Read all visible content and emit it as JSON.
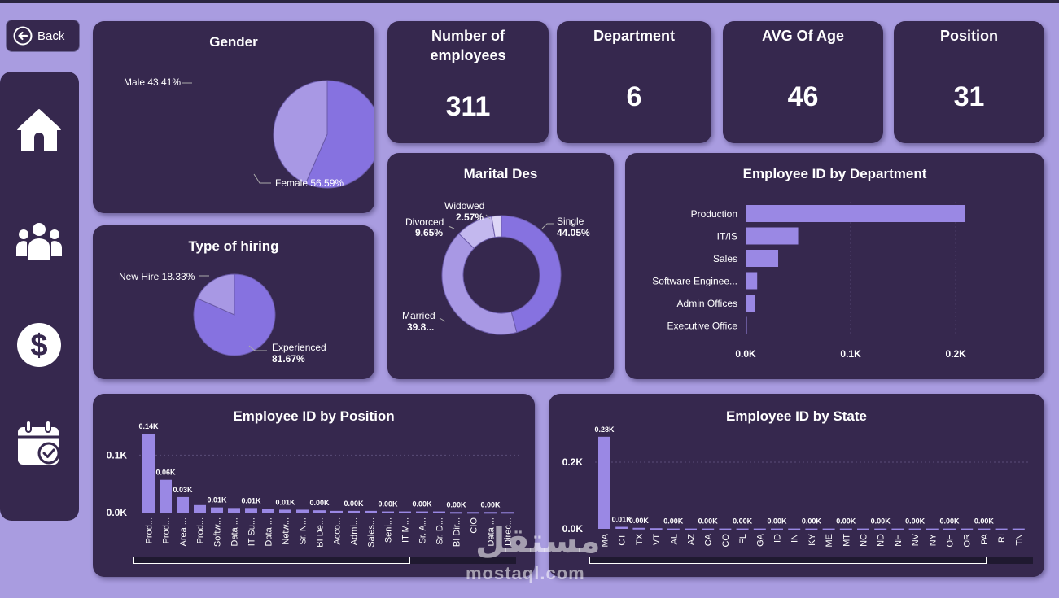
{
  "nav": {
    "back_label": "Back",
    "items": [
      {
        "icon": "home-icon"
      },
      {
        "icon": "people-icon"
      },
      {
        "icon": "dollar-icon"
      },
      {
        "icon": "calendar-check-icon"
      }
    ]
  },
  "kpis": [
    {
      "title_line1": "Number of",
      "title_line2": "employees",
      "value": "311"
    },
    {
      "title_line1": "Department",
      "title_line2": "",
      "value": "6"
    },
    {
      "title_line1": "AVG Of Age",
      "title_line2": "",
      "value": "46"
    },
    {
      "title_line1": "Position",
      "title_line2": "",
      "value": "31"
    }
  ],
  "colors": {
    "background": "#a99ce0",
    "card": "#36284e",
    "accent_primary": "#8672e0",
    "accent_light": "#a898e4",
    "accent_pale": "#c3b8ee",
    "accent_faint": "#ddd6f6"
  },
  "watermark": {
    "arabic": "مستقل",
    "latin": "mostaql.com"
  },
  "chart_data": [
    {
      "id": "gender",
      "type": "pie",
      "title": "Gender",
      "slices": [
        {
          "label": "Female",
          "value": 56.59,
          "text": "Female 56.59%",
          "color": "#8672e0"
        },
        {
          "label": "Male",
          "value": 43.41,
          "text": "Male 43.41%",
          "color": "#a898e4"
        }
      ]
    },
    {
      "id": "hiring",
      "type": "pie",
      "title": "Type of hiring",
      "slices": [
        {
          "label": "Experienced",
          "value": 81.67,
          "text_line1": "Experienced",
          "text_line2": "81.67%",
          "color": "#8672e0"
        },
        {
          "label": "New Hire",
          "value": 18.33,
          "text_line1": "New Hire 18.33%",
          "text_line2": "",
          "color": "#a898e4"
        }
      ]
    },
    {
      "id": "marital",
      "type": "pie",
      "title": "Marital Des",
      "slices": [
        {
          "label": "Single",
          "value": 44.05,
          "text_line1": "Single",
          "text_line2": "44.05%",
          "color": "#8672e0"
        },
        {
          "label": "Married",
          "value": 39.8,
          "text_line1": "Married",
          "text_line2": "39.8...",
          "color": "#a898e4"
        },
        {
          "label": "Divorced",
          "value": 9.65,
          "text_line1": "Divorced",
          "text_line2": "9.65%",
          "color": "#c3b8ee"
        },
        {
          "label": "Widowed",
          "value": 2.57,
          "text_line1": "Widowed",
          "text_line2": "2.57%",
          "color": "#ddd6f6"
        }
      ]
    },
    {
      "id": "dept",
      "type": "bar",
      "orientation": "horizontal",
      "title": "Employee ID by Department",
      "categories": [
        "Production",
        "IT/IS",
        "Sales",
        "Software Enginee...",
        "Admin Offices",
        "Executive Office"
      ],
      "values": [
        209,
        50,
        31,
        11,
        9,
        1
      ],
      "xticks": [
        0,
        100,
        200
      ],
      "xtick_labels": [
        "0.0K",
        "0.1K",
        "0.2K"
      ],
      "xlim": [
        0,
        220
      ],
      "grid": true
    },
    {
      "id": "position",
      "type": "bar",
      "title": "Employee ID by Position",
      "categories": [
        "Prod...",
        "Prod...",
        "Area ...",
        "Prod...",
        "Softw...",
        "Data ...",
        "IT Su...",
        "Data ...",
        "Netw...",
        "Sr. N...",
        "BI De...",
        "Acco...",
        "Admi...",
        "Sales...",
        "Seni...",
        "IT M...",
        "Sr. A...",
        "Sr. D...",
        "BI Dir...",
        "CIO",
        "Data ...",
        "Direc..."
      ],
      "values": [
        137,
        57,
        27,
        13,
        9,
        8,
        8,
        7,
        5,
        5,
        4,
        3,
        3,
        3,
        2,
        2,
        2,
        2,
        1,
        1,
        1,
        1
      ],
      "data_labels": [
        "0.14K",
        "0.06K",
        "0.03K",
        "",
        "0.01K",
        "",
        "0.01K",
        "",
        "0.01K",
        "",
        "0.00K",
        "",
        "0.00K",
        "",
        "0.00K",
        "",
        "0.00K",
        "",
        "0.00K",
        "",
        "0.00K",
        ""
      ],
      "yticks": [
        0,
        100
      ],
      "ytick_labels": [
        "0.0K",
        "0.1K"
      ],
      "ylim": [
        0,
        150
      ],
      "grid": true
    },
    {
      "id": "state",
      "type": "bar",
      "title": "Employee ID by State",
      "categories": [
        "MA",
        "CT",
        "TX",
        "VT",
        "AL",
        "AZ",
        "CA",
        "CO",
        "FL",
        "GA",
        "ID",
        "IN",
        "KY",
        "ME",
        "MT",
        "NC",
        "ND",
        "NH",
        "NV",
        "NY",
        "OH",
        "OR",
        "PA",
        "RI",
        "TN"
      ],
      "values": [
        276,
        6,
        3,
        2,
        1,
        1,
        1,
        1,
        1,
        1,
        1,
        1,
        1,
        1,
        1,
        1,
        1,
        1,
        1,
        1,
        1,
        1,
        1,
        1,
        1
      ],
      "data_labels": [
        "0.28K",
        "0.01K",
        "0.00K",
        "",
        "0.00K",
        "",
        "0.00K",
        "",
        "0.00K",
        "",
        "0.00K",
        "",
        "0.00K",
        "",
        "0.00K",
        "",
        "0.00K",
        "",
        "0.00K",
        "",
        "0.00K",
        "",
        "0.00K",
        "",
        ""
      ],
      "yticks": [
        0,
        200
      ],
      "ytick_labels": [
        "0.0K",
        "0.2K"
      ],
      "ylim": [
        0,
        300
      ],
      "grid": true
    }
  ]
}
